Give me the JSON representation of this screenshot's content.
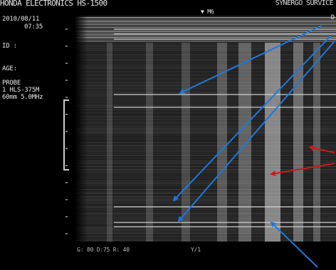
{
  "header": {
    "device": "HONDA ELECTRONICS HS-1500",
    "service": "SYNERGO SURVICE",
    "marker": "▼ M6"
  },
  "patient": {
    "date": "2010/08/11",
    "time": "07:35",
    "id_label": "ID :",
    "age_label": "AGE:"
  },
  "probe": {
    "label": "PROBE",
    "model": "1 HLS-375M",
    "settings": "60mm 5.0MHz"
  },
  "footer": {
    "settings": "G: 80 D:75 R: 40",
    "plane": "Y/1"
  },
  "corner_mark": "D",
  "colors": {
    "background": "#000000",
    "echo": "#c8c8c8",
    "blue_arrow": "#1e78dc",
    "red_arrow": "#d01818"
  },
  "icons": [
    "blue-arrow-icon",
    "red-arrow-icon",
    "depth-bracket-icon"
  ]
}
